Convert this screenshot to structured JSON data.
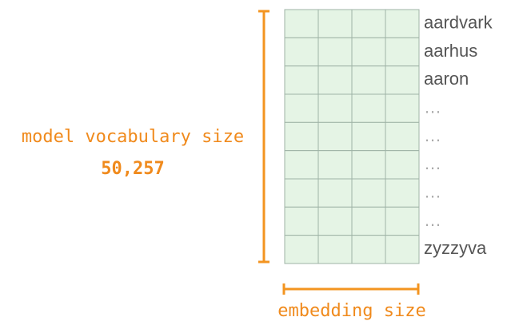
{
  "vocab_label": "model vocabulary size",
  "vocab_size": "50,257",
  "words": [
    "aardvark",
    "aarhus",
    "aaron",
    "…",
    "…",
    "…",
    "…",
    "…",
    "zyzzyva"
  ],
  "embedding_label": "embedding size"
}
